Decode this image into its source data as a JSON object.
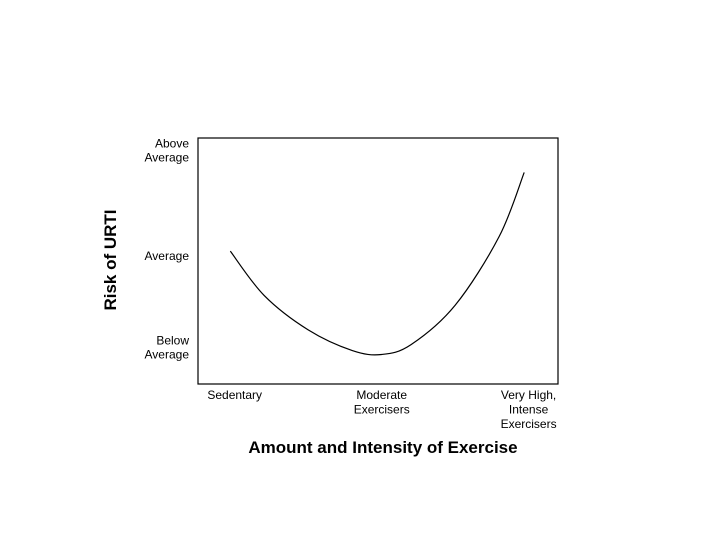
{
  "chart_data": {
    "type": "line",
    "title": "",
    "xlabel": "Amount and Intensity of Exercise",
    "ylabel": "Risk of URTI",
    "x_ticks": [
      {
        "value": 1,
        "lines": [
          "Sedentary"
        ]
      },
      {
        "value": 2,
        "lines": [
          "Moderate",
          "Exercisers"
        ]
      },
      {
        "value": 3,
        "lines": [
          "Very High,",
          "Intense",
          "Exercisers"
        ]
      }
    ],
    "y_ticks": [
      {
        "value": 1,
        "lines": [
          "Below",
          "Average"
        ]
      },
      {
        "value": 2,
        "lines": [
          "Average"
        ]
      },
      {
        "value": 3,
        "lines": [
          "Above",
          "Average"
        ]
      }
    ],
    "xlim": [
      0.75,
      3.2
    ],
    "ylim": [
      0.7,
      3.2
    ],
    "grid": false,
    "series": [
      {
        "color": "#000000",
        "points": [
          {
            "x": 0.97,
            "y": 2.05
          },
          {
            "x": 1.2,
            "y": 1.6
          },
          {
            "x": 1.5,
            "y": 1.25
          },
          {
            "x": 1.8,
            "y": 1.04
          },
          {
            "x": 2.0,
            "y": 1.0
          },
          {
            "x": 2.2,
            "y": 1.1
          },
          {
            "x": 2.5,
            "y": 1.5
          },
          {
            "x": 2.8,
            "y": 2.2
          },
          {
            "x": 2.97,
            "y": 2.85
          }
        ]
      }
    ]
  }
}
